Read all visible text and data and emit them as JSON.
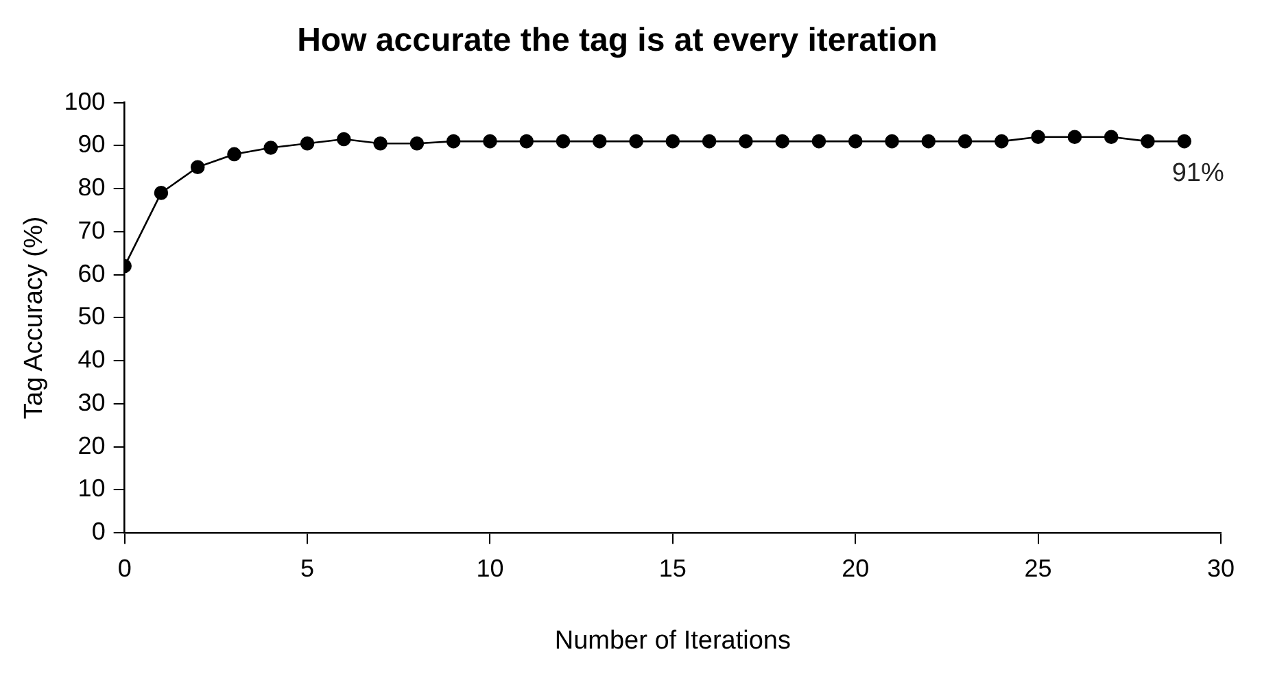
{
  "chart_data": {
    "type": "line",
    "title": "How accurate the tag is at every iteration",
    "xlabel": "Number of Iterations",
    "ylabel": "Tag Accuracy (%)",
    "x": [
      0,
      1,
      2,
      3,
      4,
      5,
      6,
      7,
      8,
      9,
      10,
      11,
      12,
      13,
      14,
      15,
      16,
      17,
      18,
      19,
      20,
      21,
      22,
      23,
      24,
      25,
      26,
      27,
      28,
      29
    ],
    "series": [
      {
        "color": "#000000",
        "values": [
          62,
          79,
          85,
          88,
          89.5,
          90.5,
          91.5,
          90.5,
          90.5,
          91,
          91,
          91,
          91,
          91,
          91,
          91,
          91,
          91,
          91,
          91,
          91,
          91,
          91,
          91,
          91,
          92,
          92,
          92,
          91,
          91
        ]
      }
    ],
    "xlim": [
      0,
      30
    ],
    "xticks": [
      0,
      5,
      10,
      15,
      20,
      25,
      30
    ],
    "ylim": [
      0,
      100
    ],
    "yticks": [
      0,
      10,
      20,
      30,
      40,
      50,
      60,
      70,
      80,
      90,
      100
    ],
    "annotations": [
      {
        "text": "91%",
        "x": 29,
        "y": 91
      }
    ],
    "grid": false,
    "legend": false,
    "marker": "circle",
    "line_style": "solid"
  }
}
